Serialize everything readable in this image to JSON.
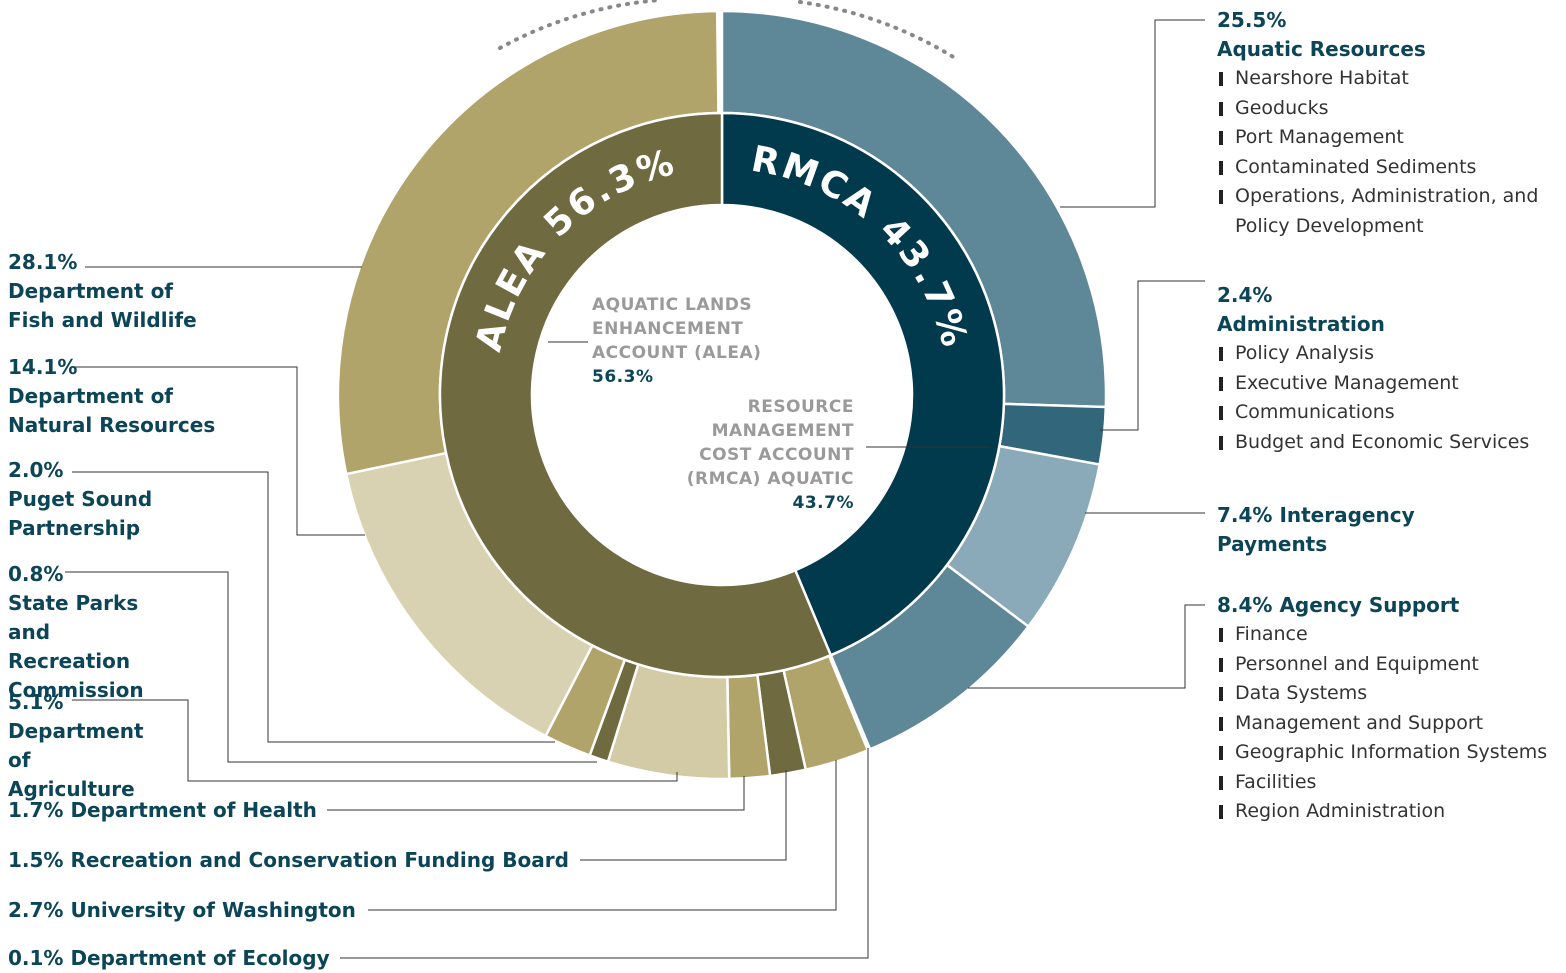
{
  "chart_data": {
    "type": "sunburst",
    "inner": [
      {
        "name": "RMCA",
        "value": 43.7,
        "value_label": "43.7%",
        "ring_label": "RMCA 43.7%",
        "center_label": "RESOURCE MANAGEMENT COST ACCOUNT (RMCA) AQUATIC",
        "color": "#003a4c"
      },
      {
        "name": "ALEA",
        "value": 56.3,
        "value_label": "56.3%",
        "ring_label": "ALEA 56.3%",
        "center_label": "AQUATIC LANDS ENHANCEMENT ACCOUNT (ALEA)",
        "color": "#6f6a40"
      }
    ],
    "outer": [
      {
        "name": "Aquatic Resources",
        "value": 25.5,
        "value_label": "25.5%",
        "color": "#5e8797",
        "items": [
          "Nearshore Habitat",
          "Geoducks",
          "Port Management",
          "Contaminated Sediments",
          "Operations, Administration, and Policy Development"
        ]
      },
      {
        "name": "Administration",
        "value": 2.4,
        "value_label": "2.4%",
        "color": "#32667a",
        "items": [
          "Policy Analysis",
          "Executive Management",
          "Communications",
          "Budget and Economic Services"
        ]
      },
      {
        "name": "Interagency Payments",
        "value": 7.4,
        "value_label": "7.4%",
        "color": "#8aa9b9",
        "items": []
      },
      {
        "name": "Agency Support",
        "value": 8.4,
        "value_label": "8.4%",
        "color": "#5e8797",
        "items": [
          "Finance",
          "Personnel and Equipment",
          "Data Systems",
          "Management and Support",
          "Geographic Information Systems",
          "Facilities",
          "Region Administration"
        ]
      },
      {
        "name": "Department of Ecology",
        "value": 0.1,
        "value_label": "0.1%",
        "color": "#b1a46a",
        "items": []
      },
      {
        "name": "University of Washington",
        "value": 2.7,
        "value_label": "2.7%",
        "color": "#b1a46a",
        "items": []
      },
      {
        "name": "Recreation and Conservation Funding Board",
        "value": 1.5,
        "value_label": "1.5%",
        "color": "#6f6a40",
        "items": []
      },
      {
        "name": "Department of Health",
        "value": 1.7,
        "value_label": "1.7%",
        "color": "#b1a46a",
        "items": []
      },
      {
        "name": "Department of Agriculture",
        "value": 5.1,
        "value_label": "5.1%",
        "color": "#d3cba6",
        "items": []
      },
      {
        "name": "State Parks and Recreation Commission",
        "value": 0.8,
        "value_label": "0.8%",
        "color": "#6f6a40",
        "items": []
      },
      {
        "name": "Puget Sound Partnership",
        "value": 2.0,
        "value_label": "2.0%",
        "color": "#b1a46a",
        "items": []
      },
      {
        "name": "Department of Natural Resources",
        "value": 14.1,
        "value_label": "14.1%",
        "color": "#d8d2b2",
        "items": []
      },
      {
        "name": "Department of Fish and Wildlife",
        "value": 28.1,
        "value_label": "28.1%",
        "color": "#b1a46a",
        "items": []
      }
    ]
  }
}
